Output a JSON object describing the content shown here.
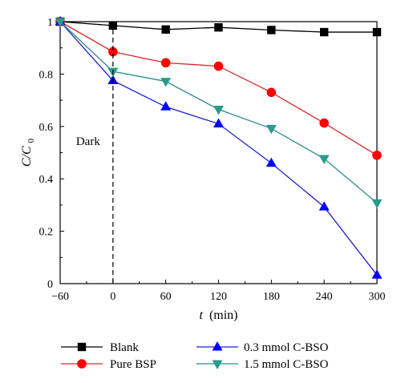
{
  "chart_data": {
    "type": "line",
    "xlabel_italic": "t",
    "xlabel_unit": "(min)",
    "ylabel_main": "C/C",
    "ylabel_sub": "0",
    "x": [
      -60,
      0,
      60,
      120,
      180,
      240,
      300
    ],
    "xticks": [
      -60,
      0,
      60,
      120,
      180,
      240,
      300
    ],
    "yticks": [
      0,
      0.2,
      0.4,
      0.6,
      0.8,
      1
    ],
    "xlim": [
      -60,
      300
    ],
    "ylim": [
      0,
      1
    ],
    "annotation": {
      "text": "Dark",
      "x": 0
    },
    "series": [
      {
        "name": "Blank",
        "marker": "square",
        "line_color": "#000000",
        "marker_color": "#000000",
        "values": [
          1.0,
          0.985,
          0.97,
          0.978,
          0.968,
          0.96,
          0.96
        ]
      },
      {
        "name": "Pure BSP",
        "marker": "circle",
        "line_color": "#d62728",
        "marker_color": "#ff0000",
        "values": [
          1.0,
          0.885,
          0.843,
          0.83,
          0.73,
          0.613,
          0.49
        ]
      },
      {
        "name": "0.3 mmol C-BSO",
        "marker": "triangle-up",
        "line_color": "#1f1fd0",
        "marker_color": "#0000ff",
        "values": [
          1.0,
          0.775,
          0.675,
          0.61,
          0.46,
          0.293,
          0.033
        ]
      },
      {
        "name": "1.5 mmol C-BSO",
        "marker": "triangle-down",
        "line_color": "#2a8c8c",
        "marker_color": "#2a9a8a",
        "values": [
          1.0,
          0.81,
          0.772,
          0.665,
          0.592,
          0.477,
          0.308
        ]
      }
    ]
  }
}
